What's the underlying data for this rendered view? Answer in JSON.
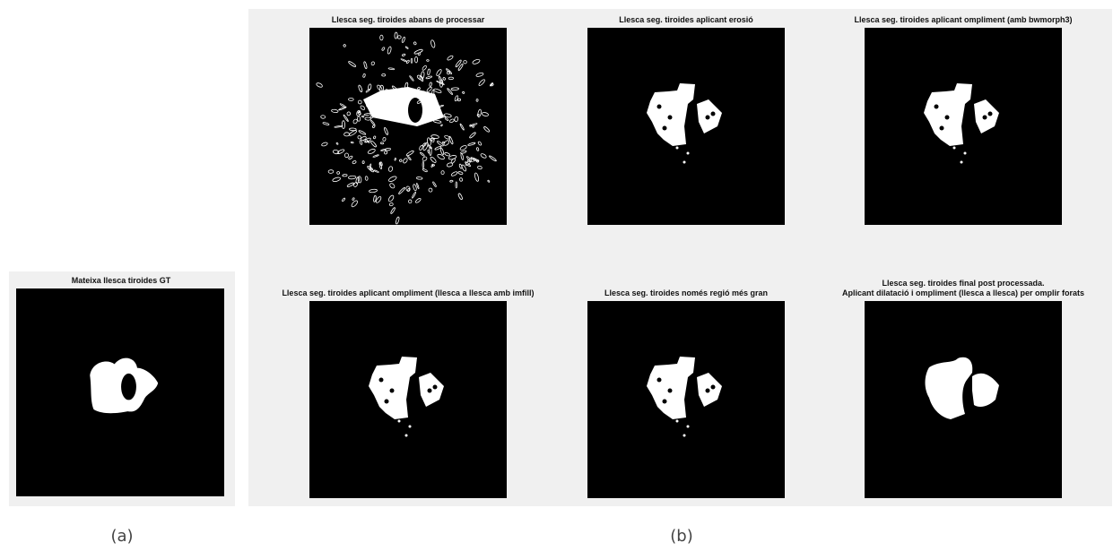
{
  "figure_a": {
    "title": "Mateixa llesca tiroides GT",
    "label": "(a)"
  },
  "figure_b": {
    "label": "(b)",
    "panels": [
      {
        "title_lines": [
          "Llesca seg. tiroides abans de processar"
        ]
      },
      {
        "title_lines": [
          "Llesca seg. tiroides aplicant erosió"
        ]
      },
      {
        "title_lines": [
          "Llesca seg. tiroides aplicant ompliment (amb bwmorph3)"
        ]
      },
      {
        "title_lines": [
          "Llesca seg. tiroides aplicant ompliment (llesca a llesca amb imfill)"
        ]
      },
      {
        "title_lines": [
          "Llesca seg. tiroides només regió més gran"
        ]
      },
      {
        "title_lines": [
          "Llesca seg. tiroides final post processada.",
          "Aplicant dilatació i ompliment (llesca a llesca) per omplir forats"
        ]
      }
    ]
  }
}
